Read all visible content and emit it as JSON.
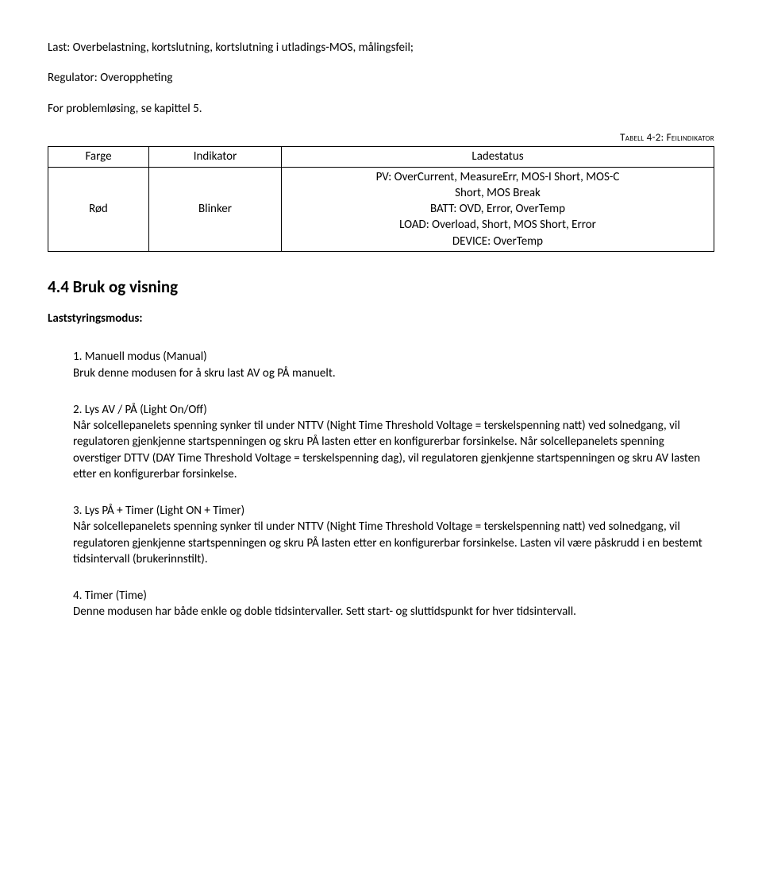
{
  "intro": {
    "line1": "Last: Overbelastning, kortslutning, kortslutning i utladings-MOS, målingsfeil;",
    "line2": "Regulator: Overoppheting",
    "line3": "For problemløsing, se kapittel 5."
  },
  "table": {
    "caption": "Tabell 4-2: Feilindikator",
    "headers": {
      "farge": "Farge",
      "indikator": "Indikator",
      "ladestatus": "Ladestatus"
    },
    "row": {
      "farge": "Rød",
      "indikator": "Blinker",
      "lade_l1": "PV: OverCurrent, MeasureErr, MOS-I Short, MOS-C",
      "lade_l2": "Short, MOS Break",
      "lade_l3": "BATT: OVD, Error, OverTemp",
      "lade_l4": "LOAD: Overload, Short, MOS Short, Error",
      "lade_l5": "DEVICE: OverTemp"
    }
  },
  "section": {
    "heading": "4.4  Bruk og visning",
    "subheading": "Laststyringsmodus:"
  },
  "modes": {
    "m1": {
      "title": "1. Manuell modus (Manual)",
      "body": "Bruk denne modusen for å skru last AV og PÅ manuelt."
    },
    "m2": {
      "title": "2. Lys AV / PÅ (Light On/Off)",
      "body": "Når solcellepanelets spenning synker til under NTTV (Night Time Threshold Voltage = terskelspenning natt) ved solnedgang, vil regulatoren gjenkjenne startspenningen og skru PÅ lasten etter en konfigurerbar forsinkelse. Når solcellepanelets spenning overstiger DTTV (DAY Time Threshold Voltage = terskelspenning dag), vil regulatoren gjenkjenne startspenningen og skru AV lasten etter en konfigurerbar forsinkelse."
    },
    "m3": {
      "title": "3. Lys PÅ + Timer (Light ON + Timer)",
      "body": "Når solcellepanelets spenning synker til under NTTV (Night Time Threshold Voltage = terskelspenning natt) ved solnedgang, vil regulatoren gjenkjenne startspenningen og skru PÅ lasten etter en konfigurerbar forsinkelse. Lasten vil være påskrudd i en bestemt tidsintervall (brukerinnstilt)."
    },
    "m4": {
      "title": "4. Timer (Time)",
      "body": "Denne modusen har både enkle og doble tidsintervaller. Sett start- og sluttidspunkt for hver tidsintervall."
    }
  }
}
